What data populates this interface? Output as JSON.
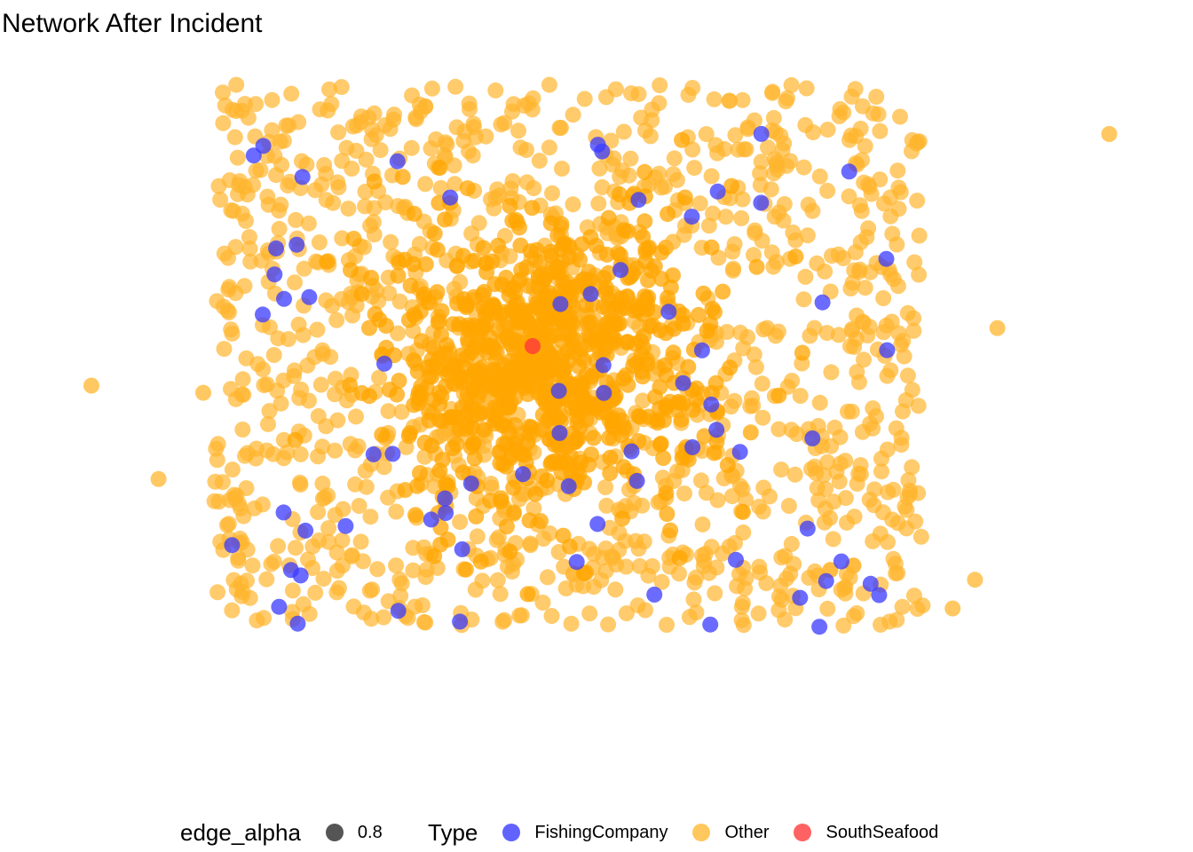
{
  "chart_data": {
    "type": "scatter",
    "title": "Network After Incident",
    "xlabel": "",
    "ylabel": "",
    "grid": false,
    "legend_position": "bottom",
    "legends": {
      "edge_alpha": {
        "title": "edge_alpha",
        "entries": [
          {
            "label": "0.8",
            "color": "#333333"
          }
        ]
      },
      "type": {
        "title": "Type",
        "entries": [
          {
            "label": "FishingCompany",
            "color": "#3a3aff"
          },
          {
            "label": "Other",
            "color": "#ffb52e"
          },
          {
            "label": "SouthSeafood",
            "color": "#ff3a3a"
          }
        ]
      }
    },
    "series": [
      {
        "name": "FishingCompany",
        "color": "#3a3aff",
        "count": 70
      },
      {
        "name": "Other",
        "color": "#ffb52e",
        "count": 2000
      },
      {
        "name": "SouthSeafood",
        "color": "#ff3a3a",
        "count": 1
      }
    ],
    "outliers": [
      {
        "x": 0.05,
        "y": 0.45,
        "series": "Other"
      },
      {
        "x": 0.11,
        "y": 0.58,
        "series": "Other"
      },
      {
        "x": 0.15,
        "y": 0.46,
        "series": "Other"
      },
      {
        "x": 0.32,
        "y": 0.08,
        "series": "Other"
      },
      {
        "x": 0.57,
        "y": 0.25,
        "series": "Other"
      },
      {
        "x": 0.61,
        "y": 0.18,
        "series": "FishingCompany"
      },
      {
        "x": 0.86,
        "y": 0.37,
        "series": "Other"
      },
      {
        "x": 0.82,
        "y": 0.76,
        "series": "Other"
      },
      {
        "x": 0.84,
        "y": 0.72,
        "series": "Other"
      },
      {
        "x": 0.96,
        "y": 0.1,
        "series": "Other"
      }
    ]
  }
}
